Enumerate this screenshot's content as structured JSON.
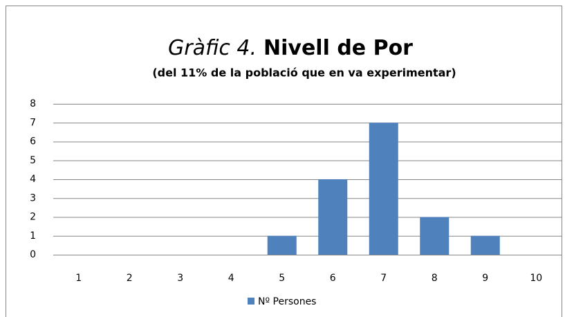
{
  "chart_data": {
    "type": "bar",
    "title": [
      "Gràfic 4.",
      "Nivell de Por"
    ],
    "subtitle": "(del 11% de la població que en va experimentar)",
    "categories": [
      "1",
      "2",
      "3",
      "4",
      "5",
      "6",
      "7",
      "8",
      "9",
      "10"
    ],
    "series": [
      {
        "name": "Nº Persones",
        "color": "#4f81bd",
        "values": [
          0,
          0,
          0,
          0,
          1,
          4,
          7,
          2,
          1,
          0
        ]
      }
    ],
    "ylim": [
      0,
      8
    ],
    "yticks": [
      0,
      1,
      2,
      3,
      4,
      5,
      6,
      7,
      8
    ],
    "grid": true,
    "legend": "bottom"
  }
}
